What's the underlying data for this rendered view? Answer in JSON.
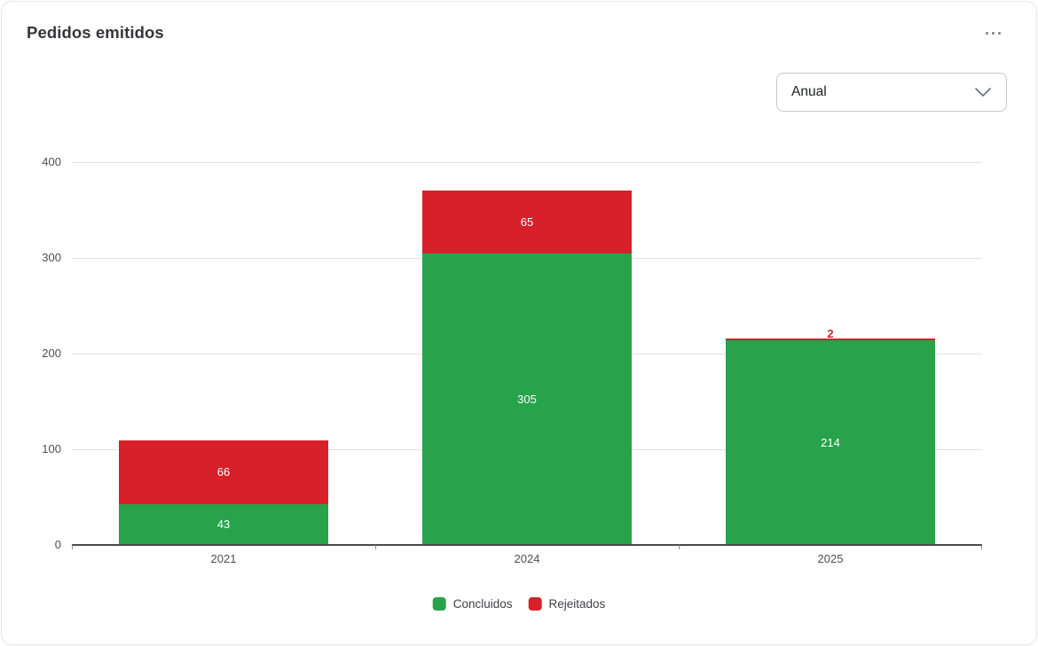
{
  "header": {
    "title": "Pedidos emitidos"
  },
  "controls": {
    "period_select": {
      "value": "Anual"
    }
  },
  "chart_data": {
    "type": "bar",
    "stacked": true,
    "title": "Pedidos emitidos",
    "categories": [
      "2021",
      "2024",
      "2025"
    ],
    "series": [
      {
        "name": "Concluidos",
        "color": "#28a24b",
        "values": [
          43,
          305,
          214
        ]
      },
      {
        "name": "Rejeitados",
        "color": "#d7202a",
        "values": [
          66,
          65,
          2
        ]
      }
    ],
    "totals": [
      109,
      370,
      216
    ],
    "xlabel": "",
    "ylabel": "",
    "ylim": [
      0,
      400
    ],
    "yticks": [
      0,
      100,
      200,
      300,
      400
    ],
    "grid": true,
    "value_labels": true,
    "legend_position": "bottom"
  }
}
